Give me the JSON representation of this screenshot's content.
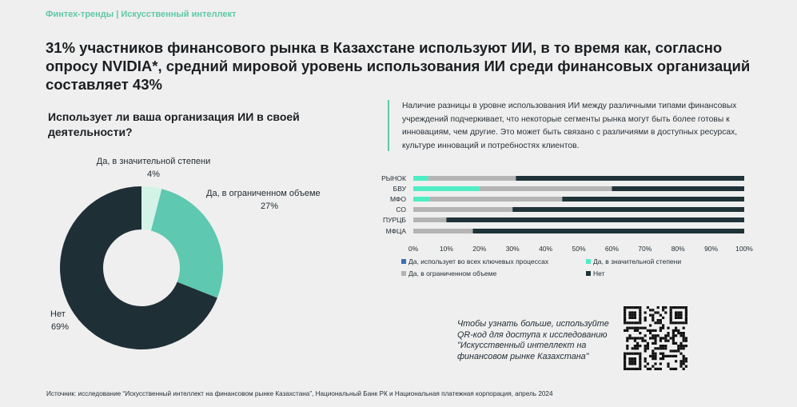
{
  "header": {
    "kicker": "Финтех-тренды | Искусственный интеллект",
    "title": "31% участников финансового рынка в Казахстане используют ИИ, в то время как, согласно опросу NVIDIA*, средний мировой уровень использования ИИ среди финансовых организаций составляет 43%"
  },
  "question": "Использует ли ваша организация ИИ в своей деятельности?",
  "note": "Наличие разницы в уровне использования ИИ между различными типами финансовых учреждений подчеркивает, что некоторые сегменты рынка могут быть более готовы к инновациям, чем другие. Это может быть связано с различиями в доступных ресурсах, культуре инноваций и потребностях клиентов.",
  "cta": "Чтобы узнать больше, используйте QR-код для доступа к исследованию \"Искусственный интеллект на финансовом рынке Казахстана\"",
  "source": "Источник: исследование “Искусственный интеллект на финансовом рынке Казахстана”,  Национальный Банк РК и Национальная платежная корпорация, апрель 2024",
  "qr_icon": "qr-code-icon",
  "chart_data": [
    {
      "type": "pie",
      "donut": true,
      "slices": [
        {
          "label": "Да, в значительной степени",
          "value": 4,
          "value_label": "4%",
          "color": "#d4f3e7"
        },
        {
          "label": "Да, в ограниченном объеме",
          "value": 27,
          "value_label": "27%",
          "color": "#5fc8b0"
        },
        {
          "label": "Нет",
          "value": 69,
          "value_label": "69%",
          "color": "#1f2f36"
        }
      ]
    },
    {
      "type": "bar",
      "orientation": "horizontal",
      "stacked": true,
      "categories": [
        "РЫНОК",
        "БВУ",
        "МФО",
        "СО",
        "ПУРЦБ",
        "МФЦА"
      ],
      "series": [
        {
          "name": "Да, использует во всех ключевых процессах",
          "color": "#3b6fb6",
          "values": [
            0,
            0,
            0,
            0,
            0,
            0
          ]
        },
        {
          "name": "Да, в значительной степени",
          "color": "#4eedc4",
          "values": [
            4.5,
            20,
            5,
            0,
            0,
            0
          ]
        },
        {
          "name": "Да, в ограниченном объеме",
          "color": "#b4b4b4",
          "values": [
            26.5,
            40,
            40,
            30,
            10,
            18
          ]
        },
        {
          "name": "Нет",
          "color": "#1f3338",
          "values": [
            69,
            40,
            55,
            70,
            90,
            82
          ]
        }
      ],
      "xlim": [
        0,
        100
      ],
      "xticks": [
        "0%",
        "10%",
        "20%",
        "30%",
        "40%",
        "50%",
        "60%",
        "70%",
        "80%",
        "90%",
        "100%"
      ],
      "legend_position": "bottom"
    }
  ]
}
